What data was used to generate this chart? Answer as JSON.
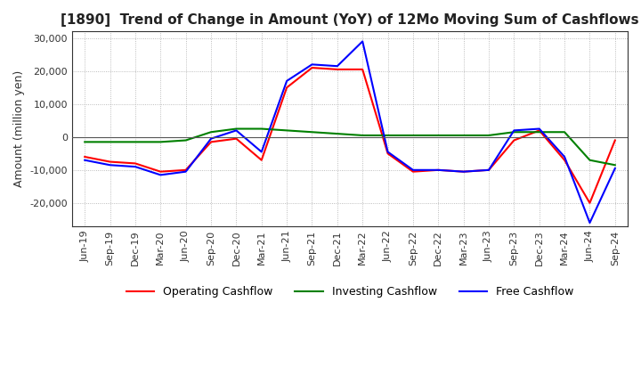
{
  "title": "[1890]  Trend of Change in Amount (YoY) of 12Mo Moving Sum of Cashflows",
  "ylabel": "Amount (million yen)",
  "ylim": [
    -27000,
    32000
  ],
  "yticks": [
    -20000,
    -10000,
    0,
    10000,
    20000,
    30000
  ],
  "legend_labels": [
    "Operating Cashflow",
    "Investing Cashflow",
    "Free Cashflow"
  ],
  "legend_colors": [
    "#ff0000",
    "#008000",
    "#0000ff"
  ],
  "x_labels": [
    "Jun-19",
    "Sep-19",
    "Dec-19",
    "Mar-20",
    "Jun-20",
    "Sep-20",
    "Dec-20",
    "Mar-21",
    "Jun-21",
    "Sep-21",
    "Dec-21",
    "Mar-22",
    "Jun-22",
    "Sep-22",
    "Dec-22",
    "Mar-23",
    "Jun-23",
    "Sep-23",
    "Dec-23",
    "Mar-24",
    "Jun-24",
    "Sep-24"
  ],
  "operating": [
    -6000,
    -7500,
    -8000,
    -10500,
    -10000,
    -1500,
    -500,
    -7000,
    15000,
    21000,
    20500,
    20500,
    -5000,
    -10500,
    -10000,
    -10500,
    -10000,
    -1000,
    2000,
    -7000,
    -20000,
    -1000
  ],
  "investing": [
    -1500,
    -1500,
    -1500,
    -1500,
    -1000,
    1500,
    2500,
    2500,
    2000,
    1500,
    1000,
    500,
    500,
    500,
    500,
    500,
    500,
    1500,
    1500,
    1500,
    -7000,
    -8500
  ],
  "free": [
    -7000,
    -8500,
    -9000,
    -11500,
    -10500,
    -500,
    2000,
    -4500,
    17000,
    22000,
    21500,
    29000,
    -4500,
    -10000,
    -10000,
    -10500,
    -10000,
    2000,
    2500,
    -6000,
    -26000,
    -9500
  ],
  "grid_color": "#aaaaaa",
  "background_color": "#ffffff",
  "title_fontsize": 11,
  "axis_fontsize": 9,
  "tick_fontsize": 8
}
